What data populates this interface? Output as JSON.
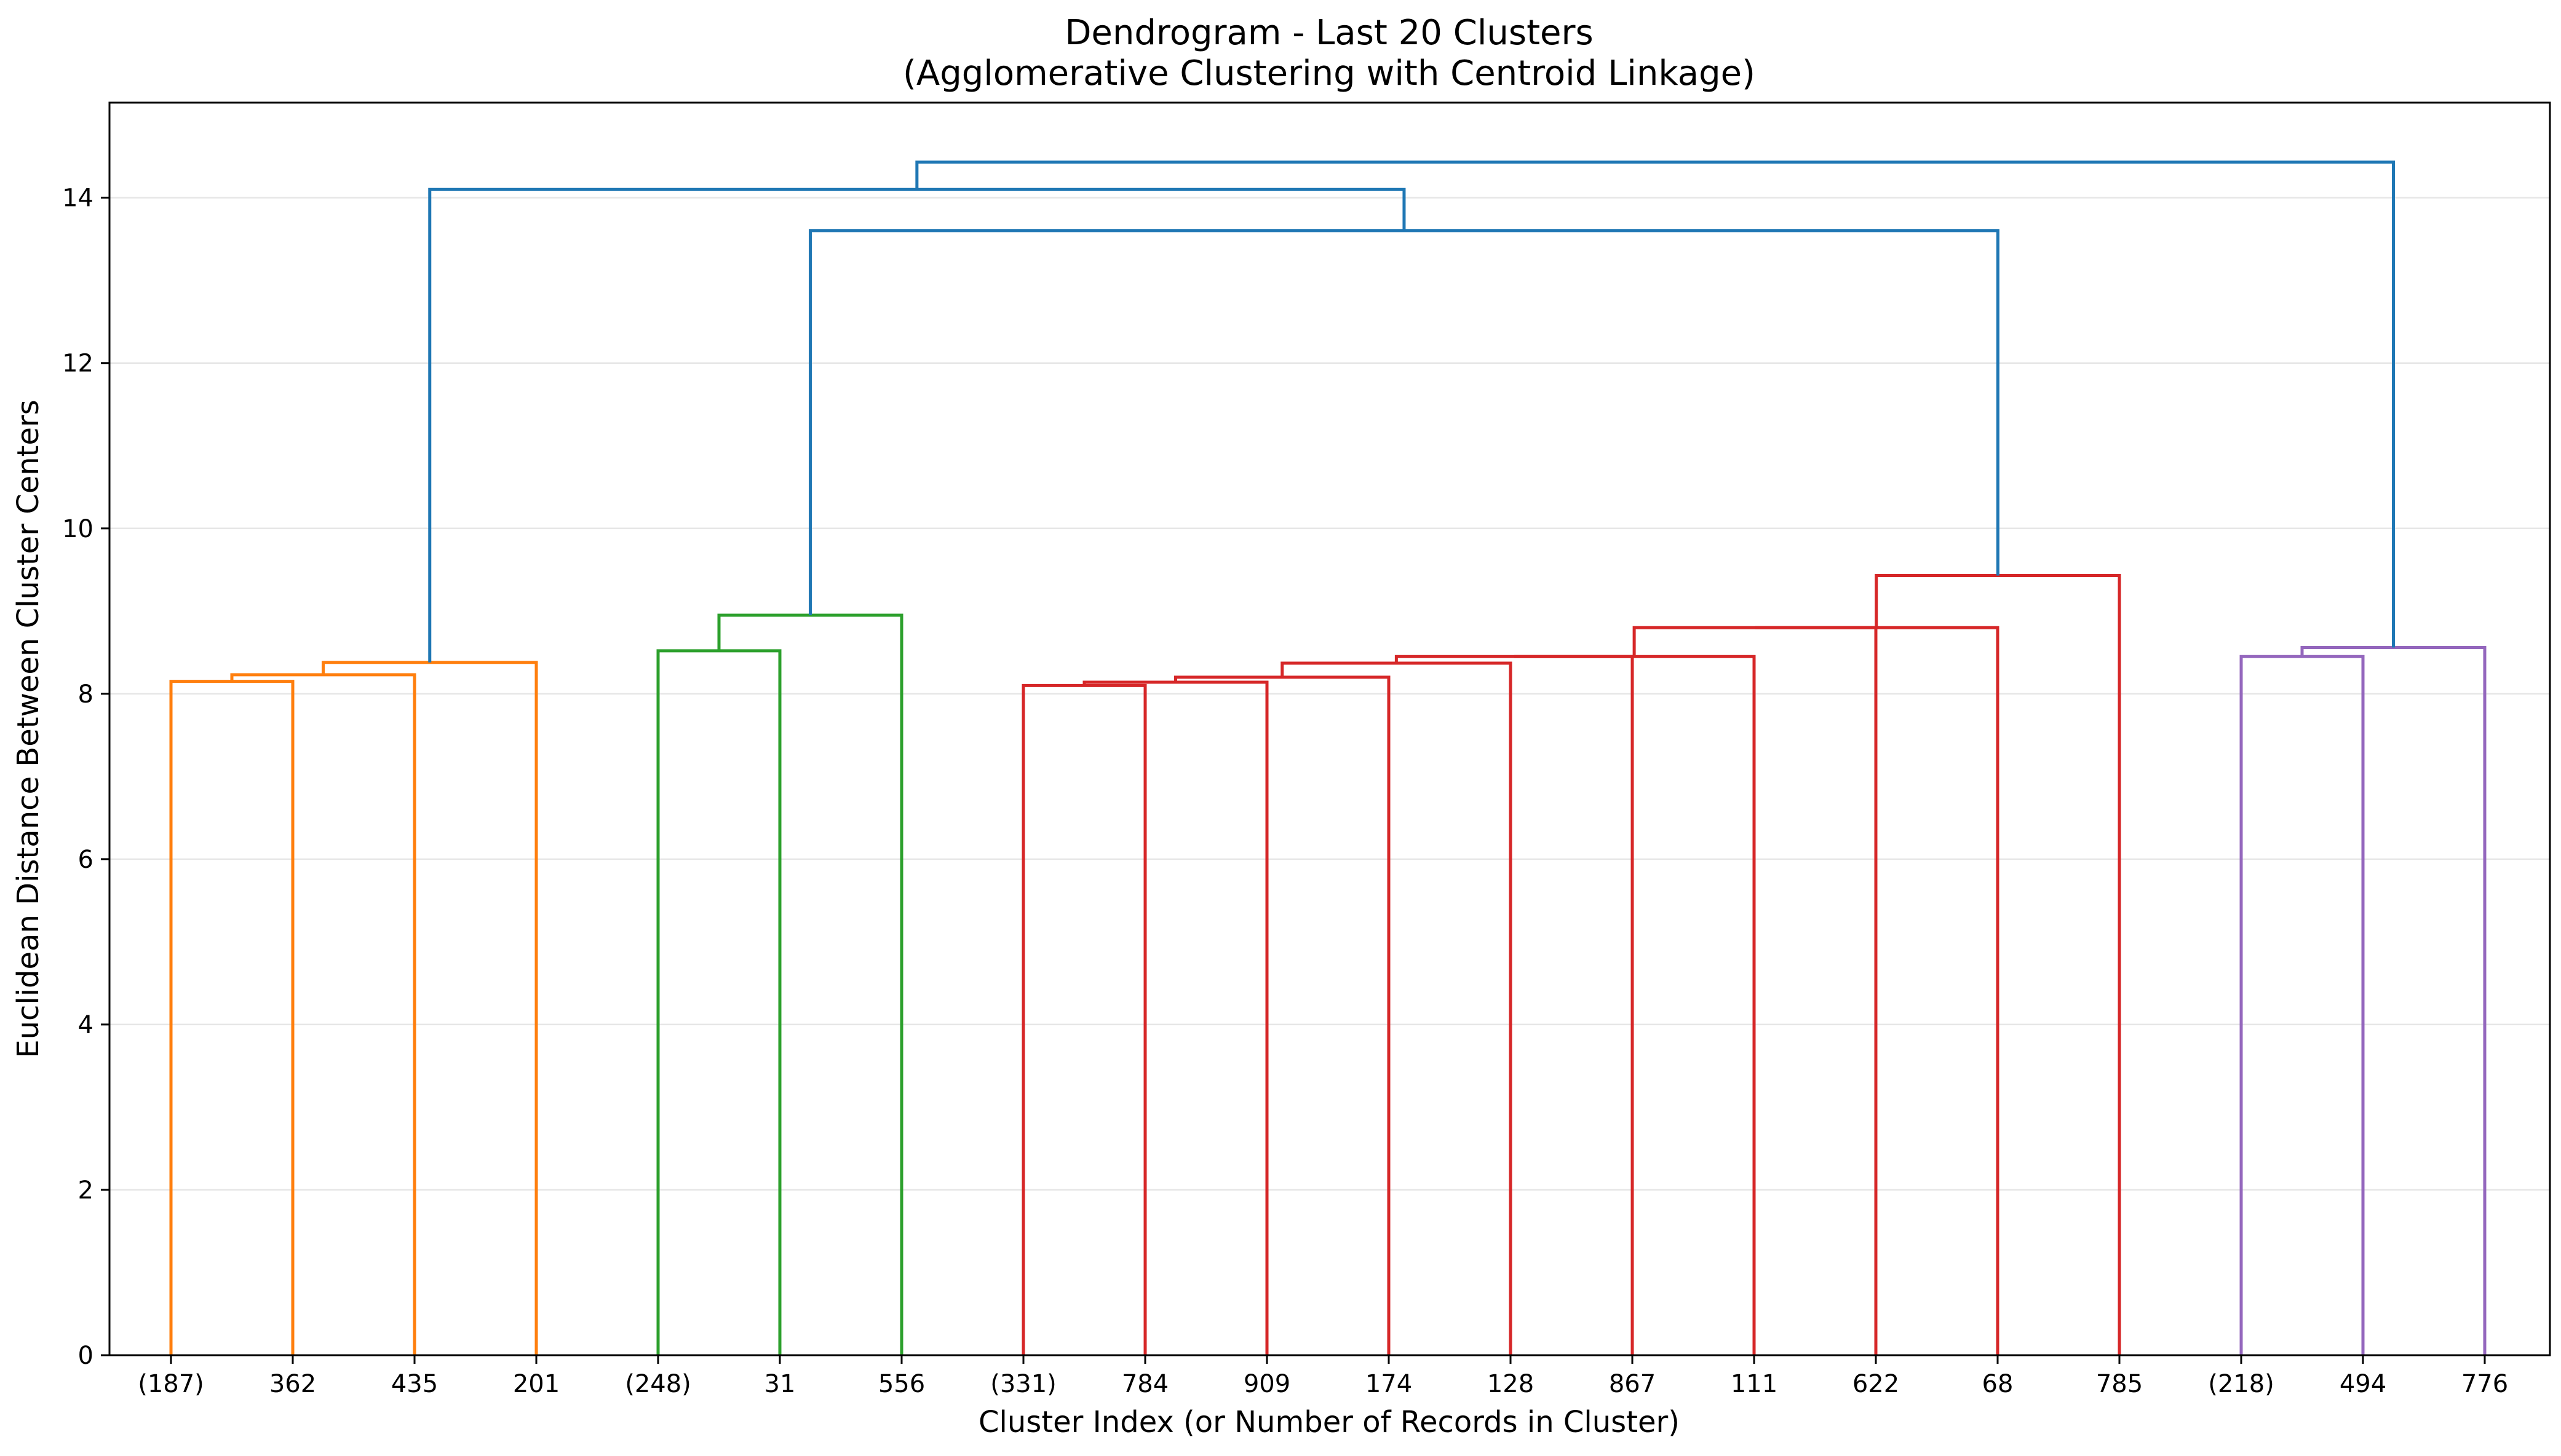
{
  "chart_data": {
    "type": "dendrogram",
    "title": "Dendrogram - Last 20 Clusters",
    "subtitle": "(Agglomerative Clustering with Centroid Linkage)",
    "xlabel": "Cluster Index (or Number of Records in Cluster)",
    "ylabel": "Euclidean Distance Between Cluster Centers",
    "ylim": [
      0,
      15.15
    ],
    "y_ticks": [
      0,
      2,
      4,
      6,
      8,
      10,
      12,
      14
    ],
    "grid": "horizontal",
    "leaves": [
      "(187)",
      "362",
      "435",
      "201",
      "(248)",
      "31",
      "556",
      "(331)",
      "784",
      "909",
      "174",
      "128",
      "867",
      "111",
      "622",
      "68",
      "785",
      "(218)",
      "494",
      "776"
    ],
    "colors": {
      "orange": "#ff7f0e",
      "green": "#2ca02c",
      "red": "#d62728",
      "purple": "#9467bd",
      "above_threshold": "#1f77b4"
    },
    "merges": [
      {
        "left": 0,
        "right": 1,
        "height": 8.15,
        "color": "orange"
      },
      {
        "left": "m0",
        "right": 2,
        "height": 8.23,
        "color": "orange"
      },
      {
        "left": "m1",
        "right": 3,
        "height": 8.38,
        "color": "orange"
      },
      {
        "left": 4,
        "right": 5,
        "height": 8.52,
        "color": "green"
      },
      {
        "left": "m3",
        "right": 6,
        "height": 8.95,
        "color": "green"
      },
      {
        "left": 7,
        "right": 8,
        "height": 8.1,
        "color": "red"
      },
      {
        "left": "m5",
        "right": 9,
        "height": 8.14,
        "color": "red"
      },
      {
        "left": "m6",
        "right": 10,
        "height": 8.2,
        "color": "red"
      },
      {
        "left": "m7",
        "right": 11,
        "height": 8.37,
        "color": "red"
      },
      {
        "left": "m8",
        "right": 12,
        "height": 8.45,
        "color": "red"
      },
      {
        "left": "m9",
        "right": 13,
        "height": 8.45,
        "color": "red"
      },
      {
        "left": "m10",
        "right": 14,
        "height": 8.8,
        "color": "red"
      },
      {
        "left": "m11",
        "right": 15,
        "height": 8.8,
        "color": "red"
      },
      {
        "left": "m12",
        "right": 16,
        "height": 9.43,
        "color": "red"
      },
      {
        "left": 17,
        "right": 18,
        "height": 8.45,
        "color": "purple"
      },
      {
        "left": "m14",
        "right": 19,
        "height": 8.56,
        "color": "purple"
      },
      {
        "left": "m4",
        "right": "m13",
        "height": 13.6,
        "color": "above_threshold"
      },
      {
        "left": "m2",
        "right": "m16",
        "height": 14.1,
        "color": "above_threshold"
      },
      {
        "left": "m17",
        "right": "m15",
        "height": 14.43,
        "color": "above_threshold"
      }
    ]
  }
}
